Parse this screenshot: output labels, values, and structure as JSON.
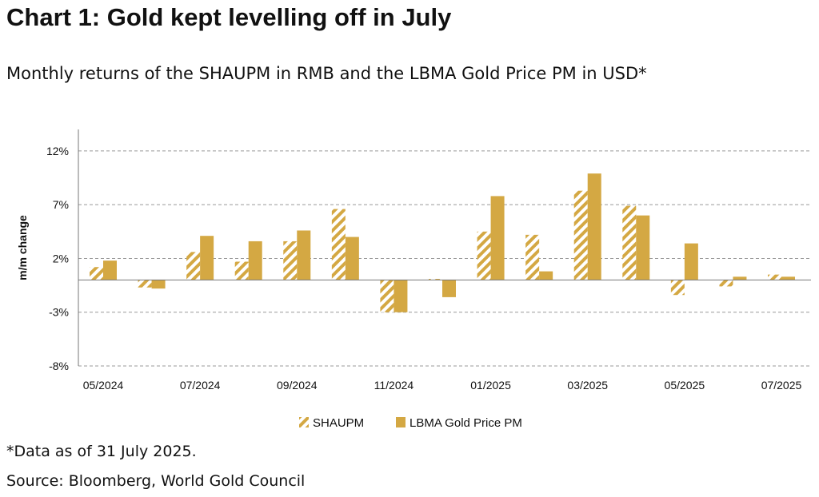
{
  "title": "Chart 1: Gold kept levelling off in July",
  "subtitle": "Monthly returns of the SHAUPM in RMB and the LBMA Gold Price PM in USD*",
  "footnotes": {
    "data_note": "*Data as of 31 July 2025.",
    "source": "Source: Bloomberg, World Gold Council"
  },
  "colors": {
    "gold": "#D4A843",
    "grid": "#999999",
    "axis": "#777777"
  },
  "chart_data": {
    "type": "bar",
    "title": "",
    "xlabel": "",
    "ylabel": "m/m change",
    "ylim": [
      -8,
      14
    ],
    "yticks": [
      12,
      7,
      2,
      -3,
      -8
    ],
    "ytick_labels": [
      "12%",
      "7%",
      "2%",
      "-3%",
      "-8%"
    ],
    "categories": [
      "05/2024",
      "06/2024",
      "07/2024",
      "08/2024",
      "09/2024",
      "10/2024",
      "11/2024",
      "12/2024",
      "01/2025",
      "02/2025",
      "03/2025",
      "04/2025",
      "05/2025",
      "06/2025",
      "07/2025"
    ],
    "xtick_labels": [
      "05/2024",
      "",
      "07/2024",
      "",
      "09/2024",
      "",
      "11/2024",
      "",
      "01/2025",
      "",
      "03/2025",
      "",
      "05/2025",
      "",
      "07/2025"
    ],
    "series": [
      {
        "name": "SHAUPM",
        "pattern": "hatched",
        "values": [
          1.2,
          -0.7,
          2.6,
          1.7,
          3.6,
          6.6,
          -3.0,
          0.1,
          4.5,
          4.2,
          8.3,
          6.9,
          -1.4,
          -0.6,
          0.5
        ]
      },
      {
        "name": "LBMA Gold Price PM",
        "pattern": "solid",
        "values": [
          1.8,
          -0.8,
          4.1,
          3.6,
          4.6,
          4.0,
          -3.0,
          -1.6,
          7.8,
          0.8,
          9.9,
          6.0,
          3.4,
          0.3,
          0.3
        ]
      }
    ],
    "grid": true,
    "legend": "bottom"
  }
}
